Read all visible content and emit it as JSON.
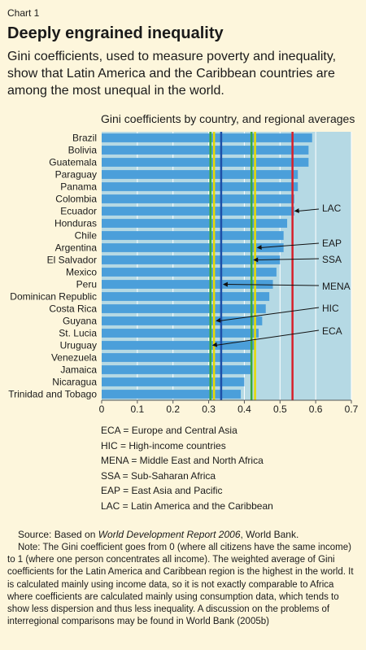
{
  "header": {
    "chart_label": "Chart 1",
    "title": "Deeply engrained inequality",
    "subtitle": "Gini coefficients, used to measure poverty and inequality, show that Latin America and the Caribbean countries are among the most unequal in the world."
  },
  "chart_data": {
    "type": "bar",
    "orientation": "horizontal",
    "title": "Gini coefficients by country, and regional averages",
    "categories": [
      "Brazil",
      "Bolivia",
      "Guatemala",
      "Paraguay",
      "Panama",
      "Colombia",
      "Ecuador",
      "Honduras",
      "Chile",
      "Argentina",
      "El Salvador",
      "Mexico",
      "Peru",
      "Dominican Republic",
      "Costa Rica",
      "Guyana",
      "St. Lucia",
      "Uruguay",
      "Venezuela",
      "Jamaica",
      "Nicaragua",
      "Trinidad and Tobago"
    ],
    "values": [
      0.59,
      0.58,
      0.58,
      0.55,
      0.55,
      0.54,
      0.54,
      0.52,
      0.51,
      0.51,
      0.5,
      0.49,
      0.48,
      0.47,
      0.46,
      0.45,
      0.44,
      0.43,
      0.42,
      0.42,
      0.4,
      0.39
    ],
    "xlim": [
      0,
      0.7
    ],
    "xticks": [
      "0",
      "0.1",
      "0.2",
      "0.3",
      "0.4",
      "0.5",
      "0.6",
      "0.7"
    ],
    "grid": true,
    "colors": {
      "bar": "#4b9fda",
      "plot_bg": "#b5d9e4",
      "ECA": "#3aaa3a",
      "HIC": "#e8d800",
      "MENA": "#1e50a8",
      "SSA": "#3aaa3a",
      "EAP": "#e8d800",
      "LAC": "#d7202a"
    },
    "regional_averages": [
      {
        "name": "ECA",
        "value": 0.305
      },
      {
        "name": "HIC",
        "value": 0.315
      },
      {
        "name": "MENA",
        "value": 0.335
      },
      {
        "name": "SSA",
        "value": 0.42
      },
      {
        "name": "EAP",
        "value": 0.43
      },
      {
        "name": "LAC",
        "value": 0.535
      }
    ]
  },
  "legend": [
    "ECA = Europe and Central Asia",
    "HIC = High-income countries",
    "MENA = Middle East and North Africa",
    "SSA = Sub-Saharan Africa",
    "EAP = East Asia and Pacific",
    "LAC = Latin America and the Caribbean"
  ],
  "footer": {
    "source_prefix": "Source: Based on ",
    "source_title": "World Development Report 2006",
    "source_suffix": ", World Bank.",
    "note": "Note: The Gini coefficient goes from 0 (where all citizens have the same income) to 1 (where one person concentrates all income). The weighted average of Gini coefficients for the Latin America and Caribbean region is the highest in the world. It is calculated mainly using income data, so it is not exactly comparable to Africa where coefficients are calculated mainly using consumption data, which tends to show less dispersion and thus less inequality. A discussion on the problems of interregional comparisons may be found in World Bank (2005b)"
  }
}
